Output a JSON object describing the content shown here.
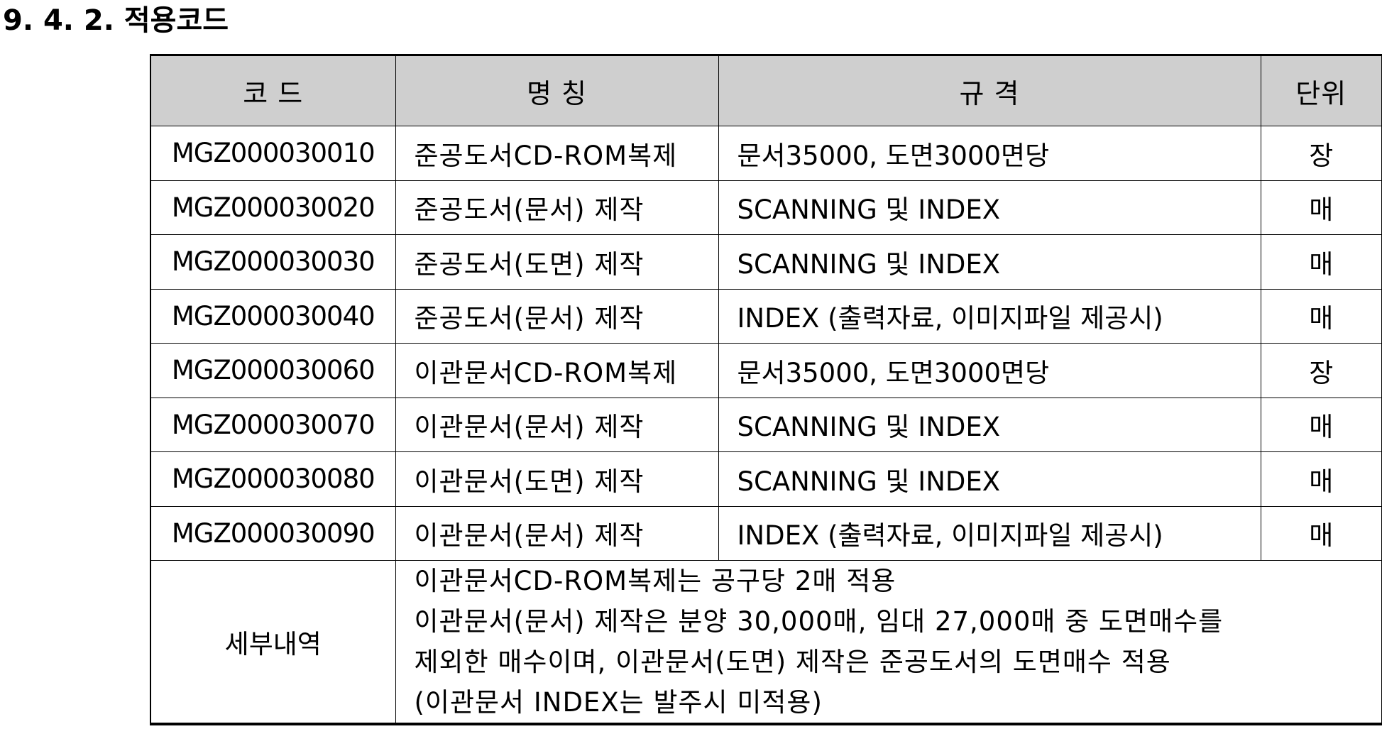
{
  "section_title": "9. 4. 2. 적용코드",
  "table": {
    "headers": {
      "code": "코  드",
      "name": "명  칭",
      "spec": "규      격",
      "unit": "단위"
    },
    "rows": [
      {
        "code": "MGZ000030010",
        "name": "준공도서CD-ROM복제",
        "spec": "문서35000, 도면3000면당",
        "unit": "장"
      },
      {
        "code": "MGZ000030020",
        "name": "준공도서(문서) 제작",
        "spec": "SCANNING 및 INDEX",
        "unit": "매"
      },
      {
        "code": "MGZ000030030",
        "name": "준공도서(도면) 제작",
        "spec": "SCANNING 및 INDEX",
        "unit": "매"
      },
      {
        "code": "MGZ000030040",
        "name": "준공도서(문서) 제작",
        "spec": "INDEX (출력자료, 이미지파일 제공시)",
        "unit": "매"
      },
      {
        "code": "MGZ000030060",
        "name": "이관문서CD-ROM복제",
        "spec": "문서35000, 도면3000면당",
        "unit": "장"
      },
      {
        "code": "MGZ000030070",
        "name": "이관문서(문서) 제작",
        "spec": "SCANNING 및 INDEX",
        "unit": "매"
      },
      {
        "code": "MGZ000030080",
        "name": "이관문서(도면) 제작",
        "spec": "SCANNING 및 INDEX",
        "unit": "매"
      },
      {
        "code": "MGZ000030090",
        "name": "이관문서(문서) 제작",
        "spec": "INDEX (출력자료, 이미지파일 제공시)",
        "unit": "매"
      }
    ],
    "detail": {
      "label": "세부내역",
      "lines": [
        "이관문서CD-ROM복제는 공구당 2매 적용",
        "이관문서(문서) 제작은 분양 30,000매, 임대 27,000매 중 도면매수를",
        "제외한 매수이며, 이관문서(도면) 제작은 준공도서의 도면매수 적용",
        "(이관문서 INDEX는 발주시 미적용)"
      ]
    }
  }
}
